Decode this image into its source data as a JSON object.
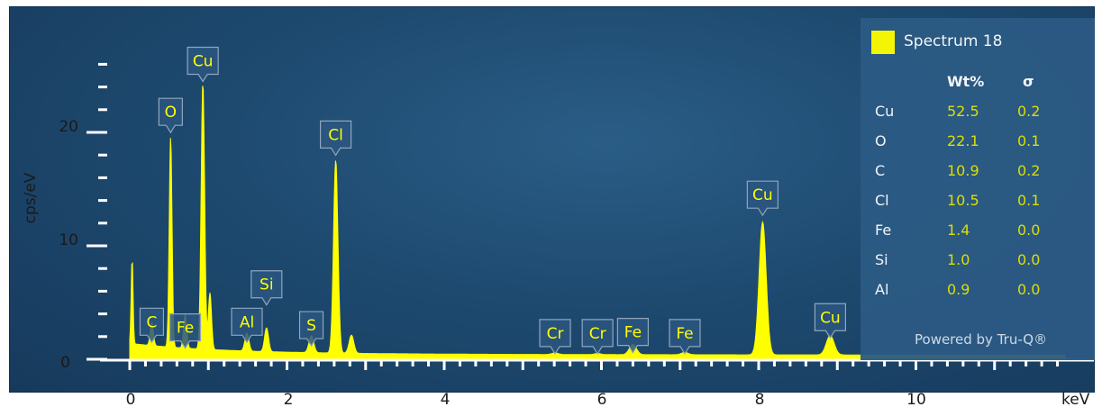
{
  "chart_data": {
    "type": "area",
    "ylabel": "cps/eV",
    "xunit": "keV",
    "xlim": [
      -0.2,
      11.9
    ],
    "ylim": [
      0,
      28
    ],
    "xticks": [
      0,
      2,
      4,
      6,
      8,
      10
    ],
    "yticks": [
      0,
      10,
      20
    ],
    "grid": false,
    "series": [
      {
        "name": "Spectrum 18",
        "color": "#ffff00",
        "peaks": [
          {
            "x": 0.03,
            "y": 7.5,
            "w": 0.012
          },
          {
            "x": 0.28,
            "y": 2.0,
            "w": 0.02
          },
          {
            "x": 0.52,
            "y": 18.5,
            "w": 0.018
          },
          {
            "x": 0.705,
            "y": 3.0,
            "w": 0.02
          },
          {
            "x": 0.93,
            "y": 23.5,
            "w": 0.022
          },
          {
            "x": 1.02,
            "y": 5.0,
            "w": 0.02
          },
          {
            "x": 1.49,
            "y": 1.6,
            "w": 0.025
          },
          {
            "x": 1.74,
            "y": 2.1,
            "w": 0.025
          },
          {
            "x": 2.31,
            "y": 1.5,
            "w": 0.03
          },
          {
            "x": 2.62,
            "y": 17.0,
            "w": 0.028
          },
          {
            "x": 2.82,
            "y": 1.6,
            "w": 0.03
          },
          {
            "x": 5.41,
            "y": 0.15,
            "w": 0.04
          },
          {
            "x": 5.95,
            "y": 0.1,
            "w": 0.04
          },
          {
            "x": 6.4,
            "y": 0.9,
            "w": 0.045
          },
          {
            "x": 7.06,
            "y": 0.2,
            "w": 0.045
          },
          {
            "x": 8.05,
            "y": 11.7,
            "w": 0.045
          },
          {
            "x": 8.91,
            "y": 1.7,
            "w": 0.05
          }
        ]
      }
    ],
    "peak_labels": [
      {
        "text": "C",
        "x": 0.28,
        "y": 4.5
      },
      {
        "text": "O",
        "x": 0.52,
        "y": 23.0
      },
      {
        "text": "Fe",
        "x": 0.705,
        "y": 4.0
      },
      {
        "text": "Cu",
        "x": 0.93,
        "y": 27.5
      },
      {
        "text": "Al",
        "x": 1.49,
        "y": 4.5
      },
      {
        "text": "Si",
        "x": 1.74,
        "y": 7.8
      },
      {
        "text": "S",
        "x": 2.31,
        "y": 4.2
      },
      {
        "text": "Cl",
        "x": 2.62,
        "y": 21.0
      },
      {
        "text": "Cr",
        "x": 5.41,
        "y": 3.5
      },
      {
        "text": "Cr",
        "x": 5.95,
        "y": 3.5
      },
      {
        "text": "Fe",
        "x": 6.4,
        "y": 3.6
      },
      {
        "text": "Fe",
        "x": 7.06,
        "y": 3.5
      },
      {
        "text": "Cu",
        "x": 8.05,
        "y": 15.7
      },
      {
        "text": "Cu",
        "x": 8.91,
        "y": 4.9
      }
    ],
    "legend_table": {
      "title": "Spectrum 18",
      "headers": [
        "Wt%",
        "σ"
      ],
      "rows": [
        {
          "element": "Cu",
          "wt": "52.5",
          "sigma": "0.2"
        },
        {
          "element": "O",
          "wt": "22.1",
          "sigma": "0.1"
        },
        {
          "element": "C",
          "wt": "10.9",
          "sigma": "0.2"
        },
        {
          "element": "Cl",
          "wt": "10.5",
          "sigma": "0.1"
        },
        {
          "element": "Fe",
          "wt": "1.4",
          "sigma": "0.0"
        },
        {
          "element": "Si",
          "wt": "1.0",
          "sigma": "0.0"
        },
        {
          "element": "Al",
          "wt": "0.9",
          "sigma": "0.0"
        }
      ],
      "footer": "Powered by Tru-Q®"
    }
  }
}
